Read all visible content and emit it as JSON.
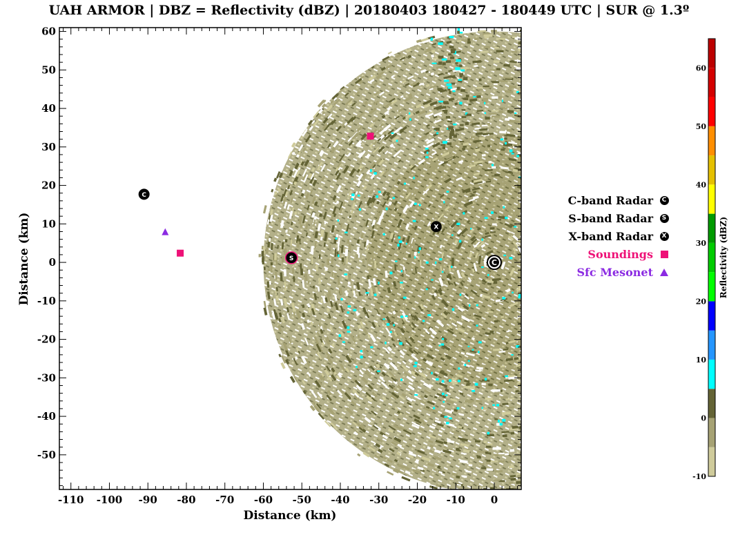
{
  "title": "UAH ARMOR | DBZ = Reflectivity (dBZ) | 20180403 180427 - 180449 UTC | SUR @ 1.3º",
  "chart_data": {
    "type": "scatter",
    "title": "UAH ARMOR | DBZ = Reflectivity (dBZ) | 20180403 180427 - 180449 UTC | SUR @ 1.3º",
    "xlabel": "Distance (km)",
    "ylabel": "Distance (km)",
    "xlim": [
      -113,
      7
    ],
    "ylim": [
      -59,
      61
    ],
    "x_ticks": [
      -110,
      -100,
      -90,
      -80,
      -70,
      -60,
      -50,
      -40,
      -30,
      -20,
      -10,
      0
    ],
    "y_ticks": [
      -50,
      -40,
      -30,
      -20,
      -10,
      0,
      10,
      20,
      30,
      40,
      50,
      60
    ],
    "radar_center": [
      0,
      0
    ],
    "echo_field": {
      "field": "DBZ",
      "extends_to_range_km": 60
    },
    "series": [
      {
        "name": "C-band Radar",
        "marker": "C",
        "color": "#000000",
        "points": [
          [
            -91,
            17.7
          ],
          [
            0,
            0
          ]
        ]
      },
      {
        "name": "S-band Radar",
        "marker": "S",
        "color": "#000000",
        "points": [
          [
            -52.7,
            1.2
          ]
        ]
      },
      {
        "name": "X-band Radar",
        "marker": "X",
        "color": "#000000",
        "points": [
          [
            -15.1,
            9.3
          ]
        ]
      },
      {
        "name": "Soundings",
        "marker": "square",
        "color": "#ee1177",
        "points": [
          [
            -81.6,
            2.4
          ],
          [
            -32.2,
            32.8
          ]
        ]
      },
      {
        "name": "Sfc Mesonet",
        "marker": "triangle",
        "color": "#8b2be2",
        "points": [
          [
            -85.5,
            7.8
          ]
        ]
      }
    ],
    "colorbar": {
      "label": "Reflectivity (dBZ)",
      "range": [
        -10,
        65
      ],
      "ticks": [
        -10,
        0,
        10,
        20,
        30,
        40,
        50,
        60
      ],
      "colors": [
        {
          "from": -10,
          "to": -5,
          "color": "#cfcb9b"
        },
        {
          "from": -5,
          "to": 0,
          "color": "#a6a274"
        },
        {
          "from": 0,
          "to": 5,
          "color": "#646436"
        },
        {
          "from": 5,
          "to": 10,
          "color": "#00ffff"
        },
        {
          "from": 10,
          "to": 15,
          "color": "#2596ff"
        },
        {
          "from": 15,
          "to": 20,
          "color": "#0000ff"
        },
        {
          "from": 20,
          "to": 25,
          "color": "#00ff00"
        },
        {
          "from": 25,
          "to": 30,
          "color": "#00cc00"
        },
        {
          "from": 30,
          "to": 35,
          "color": "#009a00"
        },
        {
          "from": 35,
          "to": 40,
          "color": "#ffff00"
        },
        {
          "from": 40,
          "to": 45,
          "color": "#e5c000"
        },
        {
          "from": 45,
          "to": 50,
          "color": "#ff8e00"
        },
        {
          "from": 50,
          "to": 55,
          "color": "#ff0000"
        },
        {
          "from": 55,
          "to": 60,
          "color": "#d40000"
        },
        {
          "from": 60,
          "to": 65,
          "color": "#bc0000"
        }
      ]
    }
  }
}
